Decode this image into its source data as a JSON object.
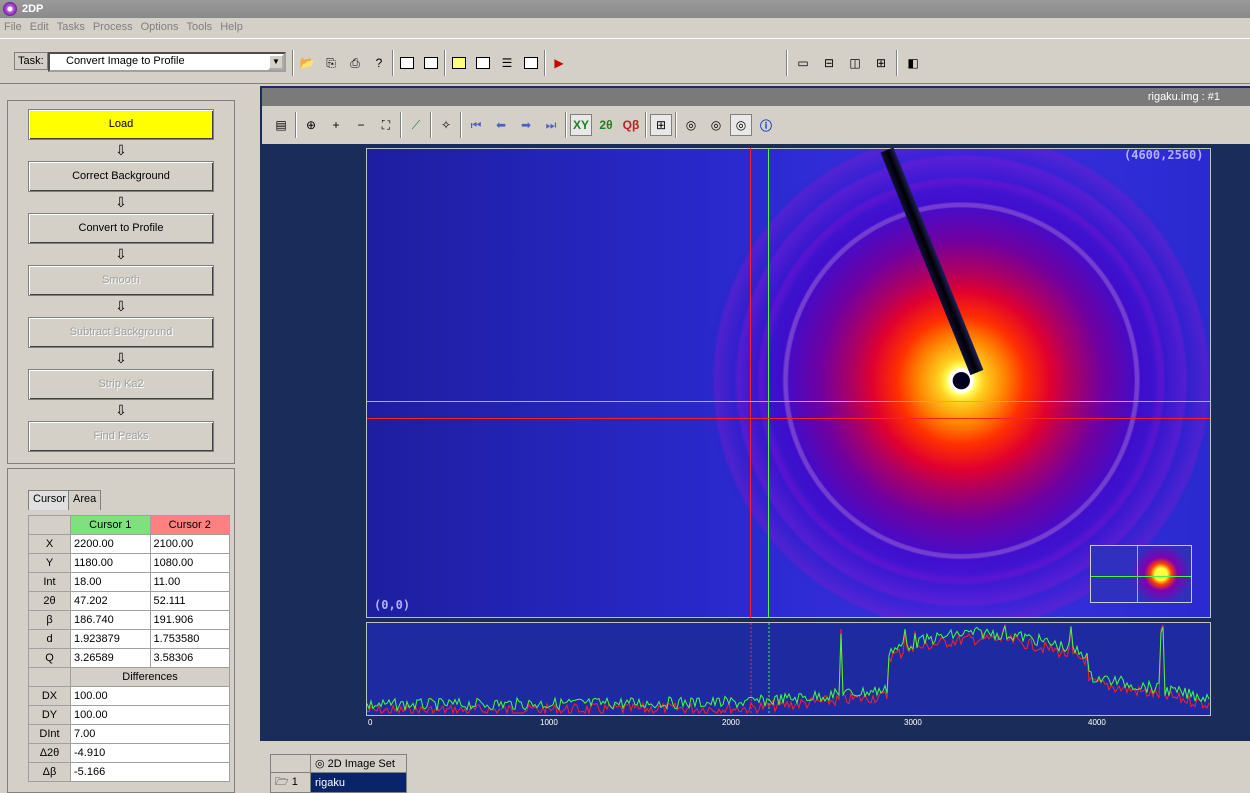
{
  "window": {
    "title": "2DP"
  },
  "menu": [
    "File",
    "Edit",
    "Tasks",
    "Process",
    "Options",
    "Tools",
    "Help"
  ],
  "toolbar": {
    "task_label": "Task:",
    "task_value": "Convert Image to Profile"
  },
  "workflow": {
    "load": "Load",
    "correct_background": "Correct Background",
    "convert_to_profile": "Convert to Profile",
    "smooth": "Smooth",
    "subtract_background": "Subtract Background",
    "strip_ka2": "Strip Ka2",
    "find_peaks": "Find Peaks"
  },
  "tabs": {
    "cursor": "Cursor",
    "area": "Area"
  },
  "cursor_table": {
    "header1": "Cursor 1",
    "header2": "Cursor 2",
    "rows": [
      {
        "label": "X",
        "c1": "2200.00",
        "c2": "2100.00"
      },
      {
        "label": "Y",
        "c1": "1180.00",
        "c2": "1080.00"
      },
      {
        "label": "Int",
        "c1": "18.00",
        "c2": "11.00"
      },
      {
        "label": "2θ",
        "c1": "47.202",
        "c2": "52.111"
      },
      {
        "label": "β",
        "c1": "186.740",
        "c2": "191.906"
      },
      {
        "label": "d",
        "c1": "1.923879",
        "c2": "1.753580"
      },
      {
        "label": "Q",
        "c1": "3.26589",
        "c2": "3.58306"
      }
    ],
    "differences_label": "Differences",
    "diff_rows": [
      {
        "label": "DX",
        "value": "100.00"
      },
      {
        "label": "DY",
        "value": "100.00"
      },
      {
        "label": "DInt",
        "value": "7.00"
      },
      {
        "label": "Δ2θ",
        "value": "-4.910"
      },
      {
        "label": "Δβ",
        "value": "-5.166"
      }
    ]
  },
  "image_window": {
    "title": "rigaku.img : #1",
    "coord_top_right": "(4600,2560)",
    "coord_bottom_left": "(0,0)"
  },
  "profile": {
    "ticks": [
      "0",
      "1000",
      "2000",
      "3000",
      "4000"
    ]
  },
  "image_set": {
    "header": "2D Image Set",
    "row_num": "1",
    "row_name": "rigaku"
  },
  "colors": {
    "load_active": "#ffff00",
    "cursor1": "#80e080",
    "cursor2": "#ff8080",
    "profile_bg": "#1e2aa0"
  }
}
